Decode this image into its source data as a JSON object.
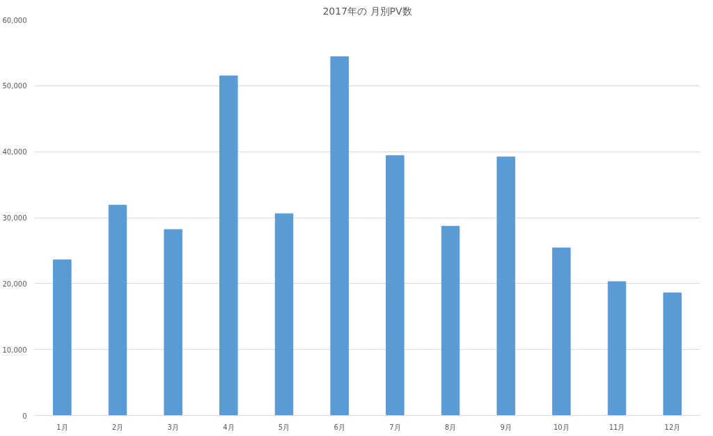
{
  "chart_data": {
    "type": "bar",
    "title": "2017年の 月別PV数",
    "categories": [
      "1月",
      "2月",
      "3月",
      "4月",
      "5月",
      "6月",
      "7月",
      "8月",
      "9月",
      "10月",
      "11月",
      "12月"
    ],
    "values": [
      23600,
      31900,
      28200,
      51500,
      30600,
      54400,
      39400,
      28700,
      39200,
      25400,
      20300,
      18600
    ],
    "color": "#5b9bd5",
    "ylim": [
      0,
      60000
    ],
    "yticks": [
      0,
      {
        "value": 10000,
        "label": "10,000"
      },
      {
        "value": 20000,
        "label": "20,000"
      },
      {
        "value": 30000,
        "label": "30,000"
      },
      {
        "value": 40000,
        "label": "40,000"
      },
      {
        "value": 50000,
        "label": "50,000"
      },
      {
        "value": 60000,
        "label": "60,000"
      }
    ],
    "grid": "y"
  }
}
